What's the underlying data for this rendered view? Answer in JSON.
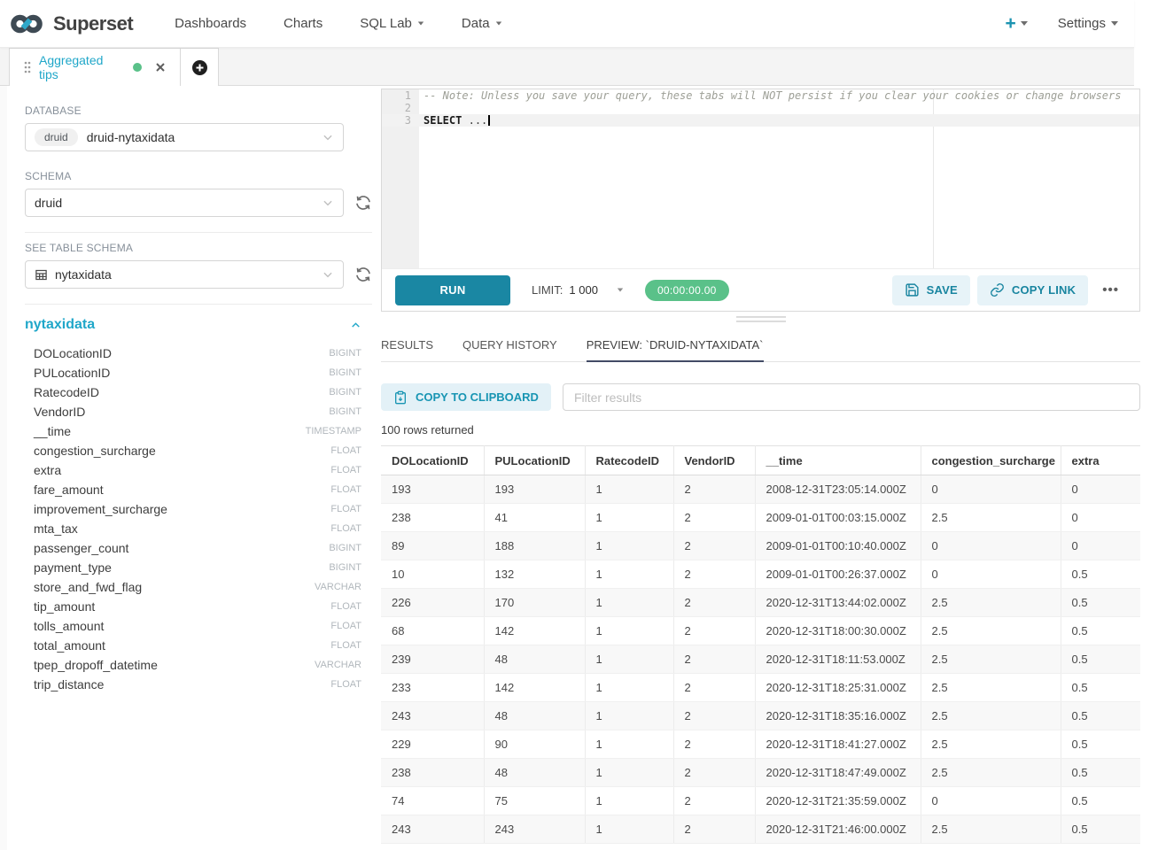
{
  "navbar": {
    "brand": "Superset",
    "links": [
      "Dashboards",
      "Charts",
      "SQL Lab",
      "Data"
    ],
    "plus_label": "+",
    "settings_label": "Settings"
  },
  "tabs_bar": {
    "active_tab_label": "Aggregated tips"
  },
  "sidebar": {
    "database_label": "DATABASE",
    "database_engine_badge": "druid",
    "database_value": "druid-nytaxidata",
    "schema_label": "SCHEMA",
    "schema_value": "druid",
    "table_label": "SEE TABLE SCHEMA",
    "table_value": "nytaxidata",
    "table_title": "nytaxidata",
    "columns": [
      {
        "name": "DOLocationID",
        "type": "BIGINT"
      },
      {
        "name": "PULocationID",
        "type": "BIGINT"
      },
      {
        "name": "RatecodeID",
        "type": "BIGINT"
      },
      {
        "name": "VendorID",
        "type": "BIGINT"
      },
      {
        "name": "__time",
        "type": "TIMESTAMP"
      },
      {
        "name": "congestion_surcharge",
        "type": "FLOAT"
      },
      {
        "name": "extra",
        "type": "FLOAT"
      },
      {
        "name": "fare_amount",
        "type": "FLOAT"
      },
      {
        "name": "improvement_surcharge",
        "type": "FLOAT"
      },
      {
        "name": "mta_tax",
        "type": "FLOAT"
      },
      {
        "name": "passenger_count",
        "type": "BIGINT"
      },
      {
        "name": "payment_type",
        "type": "BIGINT"
      },
      {
        "name": "store_and_fwd_flag",
        "type": "VARCHAR"
      },
      {
        "name": "tip_amount",
        "type": "FLOAT"
      },
      {
        "name": "tolls_amount",
        "type": "FLOAT"
      },
      {
        "name": "total_amount",
        "type": "FLOAT"
      },
      {
        "name": "tpep_dropoff_datetime",
        "type": "VARCHAR"
      },
      {
        "name": "trip_distance",
        "type": "FLOAT"
      }
    ]
  },
  "editor": {
    "line_numbers": [
      "1",
      "2",
      "3"
    ],
    "comment_line": "-- Note: Unless you save your query, these tabs will NOT persist if you clear your cookies or change browsers",
    "sql_keyword": "SELECT",
    "sql_rest": "...",
    "run_label": "RUN",
    "limit_label": "LIMIT:",
    "limit_value": "1 000",
    "timer": "00:00:00.00",
    "save_label": "SAVE",
    "copy_link_label": "COPY LINK",
    "more_label": "•••"
  },
  "results": {
    "tabs": [
      "RESULTS",
      "QUERY HISTORY",
      "PREVIEW: `DRUID-NYTAXIDATA`"
    ],
    "active_tab_index": 2,
    "copy_button_label": "COPY TO CLIPBOARD",
    "filter_placeholder": "Filter results",
    "rows_returned": "100 rows returned",
    "table": {
      "headers": [
        "DOLocationID",
        "PULocationID",
        "RatecodeID",
        "VendorID",
        "__time",
        "congestion_surcharge",
        "extra"
      ],
      "rows": [
        [
          "193",
          "193",
          "1",
          "2",
          "2008-12-31T23:05:14.000Z",
          "0",
          "0"
        ],
        [
          "238",
          "41",
          "1",
          "2",
          "2009-01-01T00:03:15.000Z",
          "2.5",
          "0"
        ],
        [
          "89",
          "188",
          "1",
          "2",
          "2009-01-01T00:10:40.000Z",
          "0",
          "0"
        ],
        [
          "10",
          "132",
          "1",
          "2",
          "2009-01-01T00:26:37.000Z",
          "0",
          "0.5"
        ],
        [
          "226",
          "170",
          "1",
          "2",
          "2020-12-31T13:44:02.000Z",
          "2.5",
          "0.5"
        ],
        [
          "68",
          "142",
          "1",
          "2",
          "2020-12-31T18:00:30.000Z",
          "2.5",
          "0.5"
        ],
        [
          "239",
          "48",
          "1",
          "2",
          "2020-12-31T18:11:53.000Z",
          "2.5",
          "0.5"
        ],
        [
          "233",
          "142",
          "1",
          "2",
          "2020-12-31T18:25:31.000Z",
          "2.5",
          "0.5"
        ],
        [
          "243",
          "48",
          "1",
          "2",
          "2020-12-31T18:35:16.000Z",
          "2.5",
          "0.5"
        ],
        [
          "229",
          "90",
          "1",
          "2",
          "2020-12-31T18:41:27.000Z",
          "2.5",
          "0.5"
        ],
        [
          "238",
          "48",
          "1",
          "2",
          "2020-12-31T18:47:49.000Z",
          "2.5",
          "0.5"
        ],
        [
          "74",
          "75",
          "1",
          "2",
          "2020-12-31T21:35:59.000Z",
          "0",
          "0.5"
        ],
        [
          "243",
          "243",
          "1",
          "2",
          "2020-12-31T21:46:00.000Z",
          "2.5",
          "0.5"
        ]
      ]
    }
  },
  "colors": {
    "primary_teal": "#20A7C9",
    "run_button": "#1A87A3",
    "success_green": "#5AC189",
    "active_tab_indicator": "#424B66"
  }
}
